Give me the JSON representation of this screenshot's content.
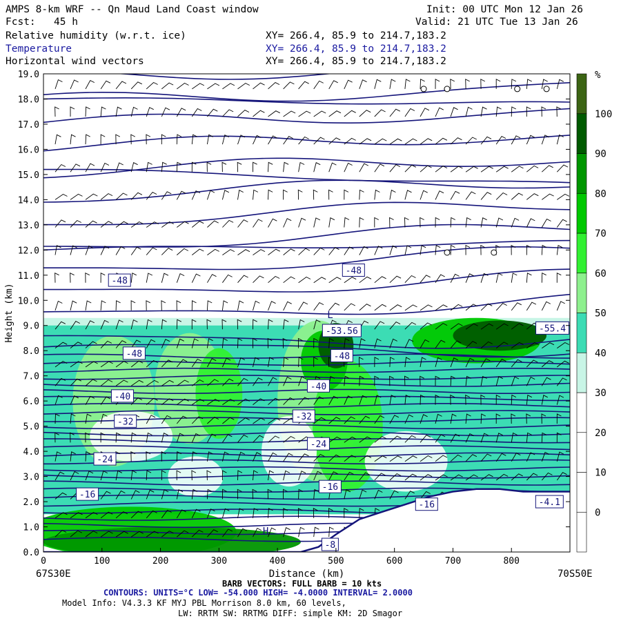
{
  "header": {
    "title": "AMPS 8-km WRF -- Qn Maud Land Coast window",
    "init": "Init: 00 UTC Mon 12 Jan 26",
    "fcst_label": "Fcst:",
    "fcst_value": "45 h",
    "valid": "Valid: 21 UTC Tue 13 Jan 26",
    "fields": [
      {
        "name": "Relative humidity (w.r.t. ice)",
        "xy": "XY= 266.4, 85.9 to 214.7,183.2"
      },
      {
        "name": "Temperature",
        "xy": "XY= 266.4, 85.9 to 214.7,183.2"
      },
      {
        "name": "Horizontal wind vectors",
        "xy": "XY= 266.4, 85.9 to 214.7,183.2"
      }
    ]
  },
  "chart_data": {
    "type": "heatmap",
    "xlabel": "Distance (km)",
    "ylabel": "Height (km)",
    "xlim": [
      0,
      900
    ],
    "ylim": [
      0,
      19
    ],
    "x_ticks": [
      0,
      100,
      200,
      300,
      400,
      500,
      600,
      700,
      800
    ],
    "y_ticks": [
      "0.0",
      "1.0",
      "2.0",
      "3.0",
      "4.0",
      "5.0",
      "6.0",
      "7.0",
      "8.0",
      "9.0",
      "10.0",
      "11.0",
      "12.0",
      "13.0",
      "14.0",
      "15.0",
      "16.0",
      "17.0",
      "18.0",
      "19.0"
    ],
    "left_endpoint": "67S30E",
    "right_endpoint": "70S50E",
    "colorbar": {
      "unit": "%",
      "levels": [
        0,
        10,
        20,
        30,
        40,
        50,
        60,
        70,
        80,
        90,
        100
      ],
      "colors": [
        "#ffffff",
        "#ffffff",
        "#ffffff",
        "#ffffff",
        "#c8f5e6",
        "#3cdcb4",
        "#8ef08e",
        "#32f032",
        "#00c800",
        "#009600",
        "#005a00",
        "#3c6414"
      ]
    },
    "rh_band": {
      "low_km": 1.5,
      "high_km": 9.0
    },
    "terrain_km": [
      [
        0,
        0
      ],
      [
        440,
        0
      ],
      [
        470,
        0.2
      ],
      [
        500,
        0.7
      ],
      [
        540,
        1.3
      ],
      [
        580,
        1.6
      ],
      [
        620,
        1.9
      ],
      [
        660,
        2.2
      ],
      [
        700,
        2.4
      ],
      [
        740,
        2.5
      ],
      [
        780,
        2.5
      ],
      [
        820,
        2.4
      ],
      [
        900,
        2.4
      ]
    ],
    "contour_labels": [
      {
        "text": "-48",
        "x": 130,
        "y": 10.8
      },
      {
        "text": "-48",
        "x": 530,
        "y": 11.2
      },
      {
        "text": "-53.56",
        "x": 510,
        "y": 8.8
      },
      {
        "text": "-55.4",
        "x": 870,
        "y": 8.9
      },
      {
        "text": "-48",
        "x": 155,
        "y": 7.9
      },
      {
        "text": "-48",
        "x": 510,
        "y": 7.8
      },
      {
        "text": "-40",
        "x": 470,
        "y": 6.6
      },
      {
        "text": "-40",
        "x": 135,
        "y": 6.2
      },
      {
        "text": "-32",
        "x": 445,
        "y": 5.4
      },
      {
        "text": "-32",
        "x": 140,
        "y": 5.2
      },
      {
        "text": "-24",
        "x": 470,
        "y": 4.3
      },
      {
        "text": "-24",
        "x": 105,
        "y": 3.7
      },
      {
        "text": "-16",
        "x": 490,
        "y": 2.6
      },
      {
        "text": "-16",
        "x": 75,
        "y": 2.3
      },
      {
        "text": "-16",
        "x": 655,
        "y": 1.9
      },
      {
        "text": "-4.1",
        "x": 865,
        "y": 2.0
      },
      {
        "text": "-8",
        "x": 490,
        "y": 0.3
      }
    ],
    "markers": [
      {
        "text": "H",
        "x": 380,
        "y": 0.7
      },
      {
        "text": "L",
        "x": 490,
        "y": 9.3
      }
    ],
    "calm_points": [
      [
        650,
        18.4
      ],
      [
        690,
        18.4
      ],
      [
        810,
        18.4
      ],
      [
        860,
        18.4
      ],
      [
        690,
        11.9
      ],
      [
        770,
        11.9
      ]
    ]
  },
  "footer": {
    "barb_line": "BARB VECTORS: FULL BARB = 10 kts",
    "contour_line": "CONTOURS: UNITS=°C LOW= -54.000 HIGH= -4.0000 INTERVAL= 2.0000",
    "model_info": "Model Info: V4.3.3 KF MYJ PBL Morrison 8.0 km, 60 levels,",
    "model_info2": "LW: RRTM SW: RRTMG DIFF: simple KM: 2D Smagor"
  }
}
